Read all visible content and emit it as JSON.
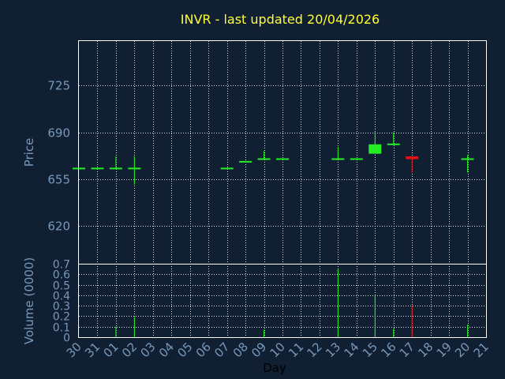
{
  "chart_data": {
    "type": "candlestick",
    "title": "INVR - last updated 20/04/2026",
    "xlabel": "Day",
    "x_ticks": [
      "30",
      "31",
      "01",
      "02",
      "03",
      "04",
      "05",
      "06",
      "07",
      "08",
      "09",
      "10",
      "11",
      "12",
      "13",
      "14",
      "15",
      "16",
      "17",
      "18",
      "19",
      "20",
      "21"
    ],
    "colors": {
      "up": "#22ee22",
      "down": "#ee1111",
      "background": "#111f33",
      "text": "#7799bb",
      "title": "#ffff33"
    },
    "price_panel": {
      "ylabel": "Price",
      "ylim": [
        592,
        758
      ],
      "yticks": [
        620,
        655,
        690,
        725
      ],
      "candles": [
        {
          "x": "30",
          "open": 663,
          "high": 663,
          "low": 663,
          "close": 663
        },
        {
          "x": "31",
          "open": 663,
          "high": 663,
          "low": 663,
          "close": 663
        },
        {
          "x": "01",
          "open": 663,
          "high": 672,
          "low": 663,
          "close": 663
        },
        {
          "x": "02",
          "open": 663,
          "high": 672,
          "low": 651,
          "close": 663
        },
        {
          "x": "07",
          "open": 663,
          "high": 663,
          "low": 663,
          "close": 663
        },
        {
          "x": "08",
          "open": 668,
          "high": 668,
          "low": 668,
          "close": 668
        },
        {
          "x": "09",
          "open": 670,
          "high": 676,
          "low": 670,
          "close": 670
        },
        {
          "x": "10",
          "open": 670,
          "high": 670,
          "low": 670,
          "close": 670
        },
        {
          "x": "13",
          "open": 670,
          "high": 679,
          "low": 670,
          "close": 670
        },
        {
          "x": "14",
          "open": 670,
          "high": 670,
          "low": 670,
          "close": 670
        },
        {
          "x": "15",
          "open": 674,
          "high": 691,
          "low": 674,
          "close": 681
        },
        {
          "x": "16",
          "open": 681,
          "high": 690,
          "low": 681,
          "close": 681
        },
        {
          "x": "17",
          "open": 672,
          "high": 672,
          "low": 660,
          "close": 670
        },
        {
          "x": "20",
          "open": 670,
          "high": 673,
          "low": 660,
          "close": 670
        }
      ]
    },
    "volume_panel": {
      "ylabel": "Volume (0000)",
      "ylim": [
        0,
        0.7
      ],
      "yticks": [
        0,
        0.1,
        0.2,
        0.3,
        0.4,
        0.5,
        0.6,
        0.7
      ],
      "bars": [
        {
          "x": "01",
          "value": 0.1,
          "dir": "up"
        },
        {
          "x": "02",
          "value": 0.19,
          "dir": "up"
        },
        {
          "x": "09",
          "value": 0.07,
          "dir": "up"
        },
        {
          "x": "13",
          "value": 0.65,
          "dir": "up"
        },
        {
          "x": "15",
          "value": 0.4,
          "dir": "up"
        },
        {
          "x": "16",
          "value": 0.08,
          "dir": "up"
        },
        {
          "x": "17",
          "value": 0.3,
          "dir": "down"
        },
        {
          "x": "20",
          "value": 0.12,
          "dir": "up"
        }
      ]
    }
  }
}
